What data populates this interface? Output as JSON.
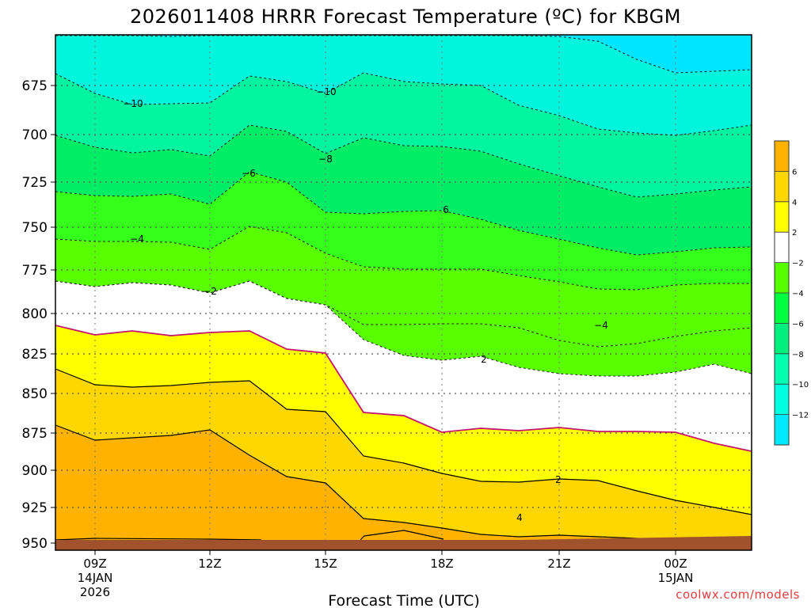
{
  "chart_data": {
    "type": "heatmap",
    "title": "2026011408 HRRR Forecast Temperature (ºC) for KBGM",
    "xlabel": "Forecast Time (UTC)",
    "credit": "coolwx.com/models",
    "y_ticks": [
      "675",
      "700",
      "725",
      "750",
      "775",
      "800",
      "825",
      "850",
      "875",
      "900",
      "925",
      "950"
    ],
    "x_ticks": [
      {
        "label": "09Z",
        "sub1": "14JAN",
        "sub2": "2026"
      },
      {
        "label": "12Z",
        "sub1": "",
        "sub2": ""
      },
      {
        "label": "15Z",
        "sub1": "",
        "sub2": ""
      },
      {
        "label": "18Z",
        "sub1": "",
        "sub2": ""
      },
      {
        "label": "21Z",
        "sub1": "",
        "sub2": ""
      },
      {
        "label": "00Z",
        "sub1": "15JAN",
        "sub2": ""
      }
    ],
    "colorbar": {
      "labels": [
        "6",
        "4",
        "2",
        "−2",
        "−4",
        "−6",
        "−8",
        "−10",
        "−12"
      ],
      "colors": [
        "#FFB300",
        "#FFD700",
        "#FFFF00",
        "#FFFFFF",
        "#55FF00",
        "#00FF40",
        "#00F080",
        "#00FFB0",
        "#00FFE0",
        "#00E8FF"
      ]
    },
    "contour_labels": [
      "−10",
      "−10",
      "−8",
      "−6",
      "6",
      "−4",
      "−4",
      "−2",
      "2",
      "2",
      "4"
    ],
    "colors": {
      "m12": "#00E5FF",
      "m10": "#00F6DC",
      "m8": "#00F5A0",
      "m6": "#00EE66",
      "m4": "#33FF1A",
      "m2": "#59FF00",
      "zero": "#FFFFFF",
      "p2": "#FFFF00",
      "p4": "#FFD700",
      "p6": "#FFB300",
      "ground": "#A0522D",
      "zeroline": "#C4146C"
    }
  }
}
